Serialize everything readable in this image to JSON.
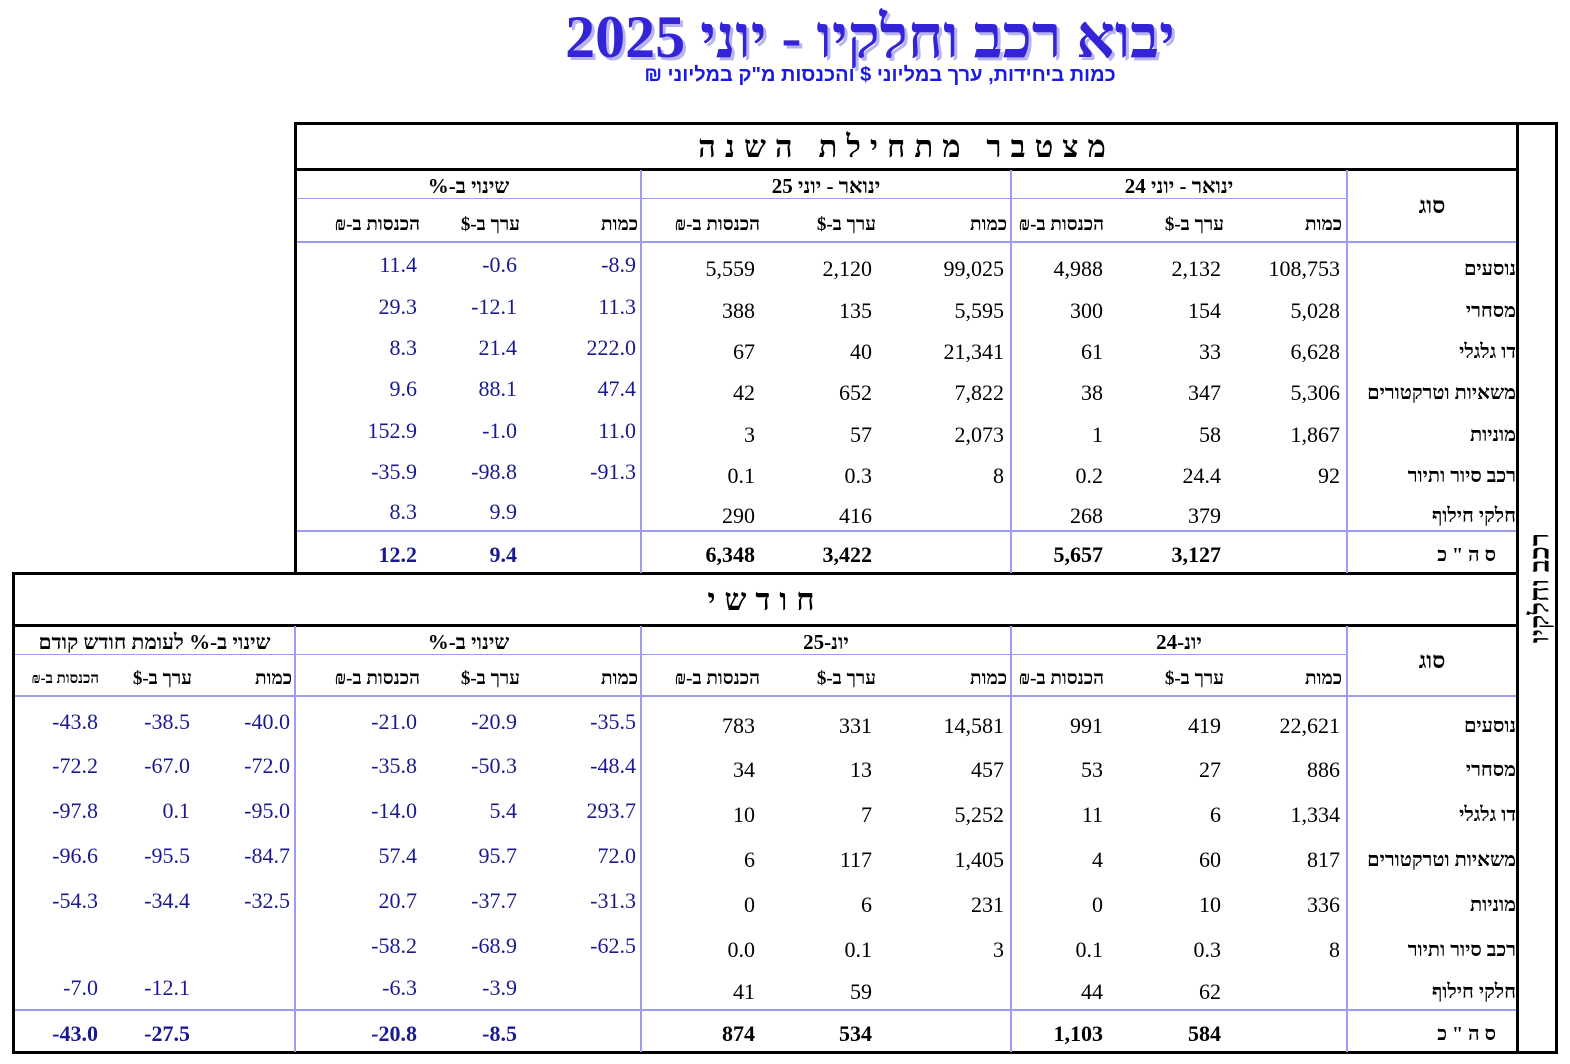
{
  "header": {
    "title": "יבוא רכב וחלקיו - יוני 2025",
    "subtitle": "כמות ביחידות, ערך במליוני $ והכנסות מ\"ק במליוני ₪"
  },
  "side_label": "רכב וחלקיו",
  "cumulative": {
    "band_title": "מצטבר מתחילת השנה",
    "col_type": "סוג",
    "group_prev": "ינואר - יוני 24",
    "group_curr": "ינואר - יוני 25",
    "group_change": "שינוי ב-%",
    "sub_qty": "כמות",
    "sub_value": "ערך ב-$",
    "sub_revenue": "הכנסות ב-₪",
    "rows": [
      {
        "label": "נוסעים",
        "q24": "108,753",
        "v24": "2,132",
        "r24": "4,988",
        "q25": "99,025",
        "v25": "2,120",
        "r25": "5,559",
        "pq": "-8.9",
        "pv": "-0.6",
        "pr": "11.4"
      },
      {
        "label": "מסחרי",
        "q24": "5,028",
        "v24": "154",
        "r24": "300",
        "q25": "5,595",
        "v25": "135",
        "r25": "388",
        "pq": "11.3",
        "pv": "-12.1",
        "pr": "29.3"
      },
      {
        "label": "דו גלגלי",
        "q24": "6,628",
        "v24": "33",
        "r24": "61",
        "q25": "21,341",
        "v25": "40",
        "r25": "67",
        "pq": "222.0",
        "pv": "21.4",
        "pr": "8.3"
      },
      {
        "label": "משאיות וטרקטורים",
        "q24": "5,306",
        "v24": "347",
        "r24": "38",
        "q25": "7,822",
        "v25": "652",
        "r25": "42",
        "pq": "47.4",
        "pv": "88.1",
        "pr": "9.6"
      },
      {
        "label": "מוניות",
        "q24": "1,867",
        "v24": "58",
        "r24": "1",
        "q25": "2,073",
        "v25": "57",
        "r25": "3",
        "pq": "11.0",
        "pv": "-1.0",
        "pr": "152.9"
      },
      {
        "label": "רכב סיור ותיור",
        "q24": "92",
        "v24": "24.4",
        "r24": "0.2",
        "q25": "8",
        "v25": "0.3",
        "r25": "0.1",
        "pq": "-91.3",
        "pv": "-98.8",
        "pr": "-35.9"
      },
      {
        "label": "חלקי חילוף",
        "q24": "",
        "v24": "379",
        "r24": "268",
        "q25": "",
        "v25": "416",
        "r25": "290",
        "pq": "",
        "pv": "9.9",
        "pr": "8.3"
      }
    ],
    "total": {
      "label": "ס ה \" כ",
      "q24": "",
      "v24": "3,127",
      "r24": "5,657",
      "q25": "",
      "v25": "3,422",
      "r25": "6,348",
      "pq": "",
      "pv": "9.4",
      "pr": "12.2"
    }
  },
  "monthly": {
    "band_title": "חודשי",
    "col_type": "סוג",
    "group_prev": "יונ-24",
    "group_curr": "יונ-25",
    "group_change": "שינוי ב-%",
    "group_prevmonth": "שינוי ב-% לעומת חודש קודם",
    "sub_qty": "כמות",
    "sub_value": "ערך ב-$",
    "sub_revenue": "הכנסות ב-₪",
    "rows": [
      {
        "label": "נוסעים",
        "q24": "22,621",
        "v24": "419",
        "r24": "991",
        "q25": "14,581",
        "v25": "331",
        "r25": "783",
        "pq": "-35.5",
        "pv": "-20.9",
        "pr": "-21.0",
        "mq": "-40.0",
        "mv": "-38.5",
        "mr": "-43.8"
      },
      {
        "label": "מסחרי",
        "q24": "886",
        "v24": "27",
        "r24": "53",
        "q25": "457",
        "v25": "13",
        "r25": "34",
        "pq": "-48.4",
        "pv": "-50.3",
        "pr": "-35.8",
        "mq": "-72.0",
        "mv": "-67.0",
        "mr": "-72.2"
      },
      {
        "label": "דו גלגלי",
        "q24": "1,334",
        "v24": "6",
        "r24": "11",
        "q25": "5,252",
        "v25": "7",
        "r25": "10",
        "pq": "293.7",
        "pv": "5.4",
        "pr": "-14.0",
        "mq": "-95.0",
        "mv": "0.1",
        "mr": "-97.8"
      },
      {
        "label": "משאיות וטרקטורים",
        "q24": "817",
        "v24": "60",
        "r24": "4",
        "q25": "1,405",
        "v25": "117",
        "r25": "6",
        "pq": "72.0",
        "pv": "95.7",
        "pr": "57.4",
        "mq": "-84.7",
        "mv": "-95.5",
        "mr": "-96.6"
      },
      {
        "label": "מוניות",
        "q24": "336",
        "v24": "10",
        "r24": "0",
        "q25": "231",
        "v25": "6",
        "r25": "0",
        "pq": "-31.3",
        "pv": "-37.7",
        "pr": "20.7",
        "mq": "-32.5",
        "mv": "-34.4",
        "mr": "-54.3"
      },
      {
        "label": "רכב סיור ותיור",
        "q24": "8",
        "v24": "0.3",
        "r24": "0.1",
        "q25": "3",
        "v25": "0.1",
        "r25": "0.0",
        "pq": "-62.5",
        "pv": "-68.9",
        "pr": "-58.2",
        "mq": "",
        "mv": "",
        "mr": ""
      },
      {
        "label": "חלקי חילוף",
        "q24": "",
        "v24": "62",
        "r24": "44",
        "q25": "",
        "v25": "59",
        "r25": "41",
        "pq": "",
        "pv": "-3.9",
        "pr": "-6.3",
        "mq": "",
        "mv": "-12.1",
        "mr": "-7.0"
      }
    ],
    "total": {
      "label": "ס ה \" כ",
      "q24": "",
      "v24": "584",
      "r24": "1,103",
      "q25": "",
      "v25": "534",
      "r25": "874",
      "pq": "",
      "pv": "-8.5",
      "pr": "-20.8",
      "mq": "",
      "mv": "-27.5",
      "mr": "-43.0"
    }
  }
}
